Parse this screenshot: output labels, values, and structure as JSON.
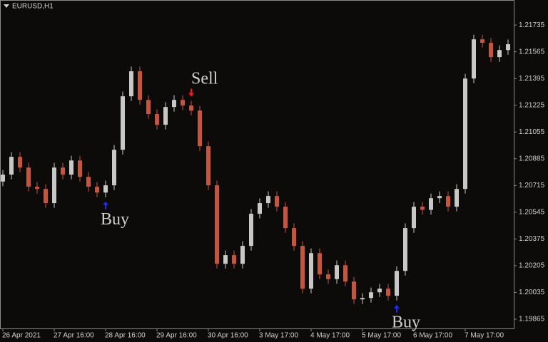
{
  "chart_data": {
    "type": "candlestick",
    "title": "EURUSD,H1",
    "xticks": [
      {
        "value": 0,
        "label": "26 Apr 2021"
      },
      {
        "value": 6,
        "label": "27 Apr 16:00"
      },
      {
        "value": 12,
        "label": "28 Apr 16:00"
      },
      {
        "value": 18,
        "label": "29 Apr 16:00"
      },
      {
        "value": 24,
        "label": "30 Apr 16:00"
      },
      {
        "value": 30,
        "label": "3 May 17:00"
      },
      {
        "value": 36,
        "label": "4 May 17:00"
      },
      {
        "value": 42,
        "label": "5 May 17:00"
      },
      {
        "value": 48,
        "label": "6 May 17:00"
      },
      {
        "value": 54,
        "label": "7 May 17:00"
      }
    ],
    "ylim": [
      1.19806,
      1.21885
    ],
    "yticks": [
      1.19865,
      1.20035,
      1.20205,
      1.20375,
      1.20545,
      1.20715,
      1.20885,
      1.21055,
      1.21225,
      1.21395,
      1.21565,
      1.21735
    ],
    "up_color": "#c8c8c8",
    "down_color": "#c4553f",
    "open": [
      1.2074,
      1.20784,
      1.20897,
      1.20829,
      1.20707,
      1.20693,
      1.20603,
      1.20829,
      1.20784,
      1.20874,
      1.2077,
      1.20707,
      1.2067,
      1.20716,
      1.20942,
      1.21282,
      1.21441,
      1.21259,
      1.21169,
      1.21101,
      1.21214,
      1.21259,
      1.21223,
      1.21191,
      1.20965,
      1.20716,
      1.20217,
      1.20272,
      1.20217,
      1.20331,
      1.20535,
      1.20603,
      1.20648,
      1.2058,
      1.20444,
      1.20331,
      1.20059,
      1.20285,
      1.2015,
      1.2012,
      1.20208,
      1.20104,
      1.19991,
      1.2,
      1.20036,
      1.20059,
      1.20014,
      1.20172,
      1.20444,
      1.2058,
      1.2056,
      1.20634,
      1.20648,
      1.2058,
      1.20693,
      1.21395,
      1.21644,
      1.21622,
      1.21531,
      1.21576
    ],
    "high": [
      1.20814,
      1.20927,
      1.20927,
      1.20859,
      1.20737,
      1.20723,
      1.20859,
      1.20859,
      1.20904,
      1.20904,
      1.208,
      1.20737,
      1.20746,
      1.20972,
      1.21312,
      1.21471,
      1.21471,
      1.21289,
      1.21199,
      1.21244,
      1.21289,
      1.21289,
      1.21253,
      1.21221,
      1.20995,
      1.20746,
      1.20302,
      1.20302,
      1.20361,
      1.20565,
      1.20633,
      1.20678,
      1.20678,
      1.2061,
      1.20474,
      1.20361,
      1.20315,
      1.20315,
      1.2018,
      1.20238,
      1.20238,
      1.20134,
      1.2003,
      1.20066,
      1.20089,
      1.20089,
      1.20202,
      1.20474,
      1.2061,
      1.2061,
      1.20664,
      1.20678,
      1.20678,
      1.20723,
      1.21425,
      1.21674,
      1.21674,
      1.21652,
      1.21606,
      1.21643
    ],
    "low": [
      1.2071,
      1.20754,
      1.20799,
      1.20677,
      1.20663,
      1.20573,
      1.20573,
      1.20754,
      1.20754,
      1.2074,
      1.20677,
      1.2064,
      1.2064,
      1.20686,
      1.20912,
      1.21252,
      1.21229,
      1.21139,
      1.21071,
      1.21071,
      1.21184,
      1.21193,
      1.21161,
      1.20935,
      1.20686,
      1.20187,
      1.20187,
      1.20187,
      1.20187,
      1.20301,
      1.20505,
      1.20573,
      1.2055,
      1.20414,
      1.20301,
      1.20029,
      1.20029,
      1.2012,
      1.2009,
      1.2009,
      1.20074,
      1.19961,
      1.19961,
      1.1997,
      1.20006,
      1.19984,
      1.19984,
      1.20142,
      1.20414,
      1.2053,
      1.2053,
      1.20604,
      1.2055,
      1.2055,
      1.20663,
      1.21365,
      1.21592,
      1.21501,
      1.21501,
      1.21546
    ],
    "close": [
      1.20784,
      1.20897,
      1.20829,
      1.20707,
      1.20693,
      1.20603,
      1.20829,
      1.20784,
      1.20874,
      1.2077,
      1.20707,
      1.2067,
      1.20716,
      1.20942,
      1.21282,
      1.21441,
      1.21259,
      1.21169,
      1.21101,
      1.21214,
      1.21259,
      1.21223,
      1.21191,
      1.20965,
      1.20716,
      1.20217,
      1.20272,
      1.20217,
      1.20331,
      1.20535,
      1.20603,
      1.20648,
      1.2058,
      1.20444,
      1.20331,
      1.20059,
      1.20285,
      1.2015,
      1.2012,
      1.20208,
      1.20104,
      1.19991,
      1.2,
      1.20036,
      1.20059,
      1.20014,
      1.20172,
      1.20444,
      1.2058,
      1.2056,
      1.20634,
      1.20648,
      1.2058,
      1.20693,
      1.21395,
      1.21644,
      1.21622,
      1.21531,
      1.21576,
      1.21613
    ],
    "annotations": [
      {
        "text": "Buy",
        "index": 12,
        "signal": "buy",
        "color": "#1a2cff"
      },
      {
        "text": "Sell",
        "index": 22,
        "signal": "sell",
        "color": "#ff1a1a"
      },
      {
        "text": "Buy",
        "index": 46,
        "signal": "buy",
        "color": "#1a2cff"
      }
    ]
  }
}
